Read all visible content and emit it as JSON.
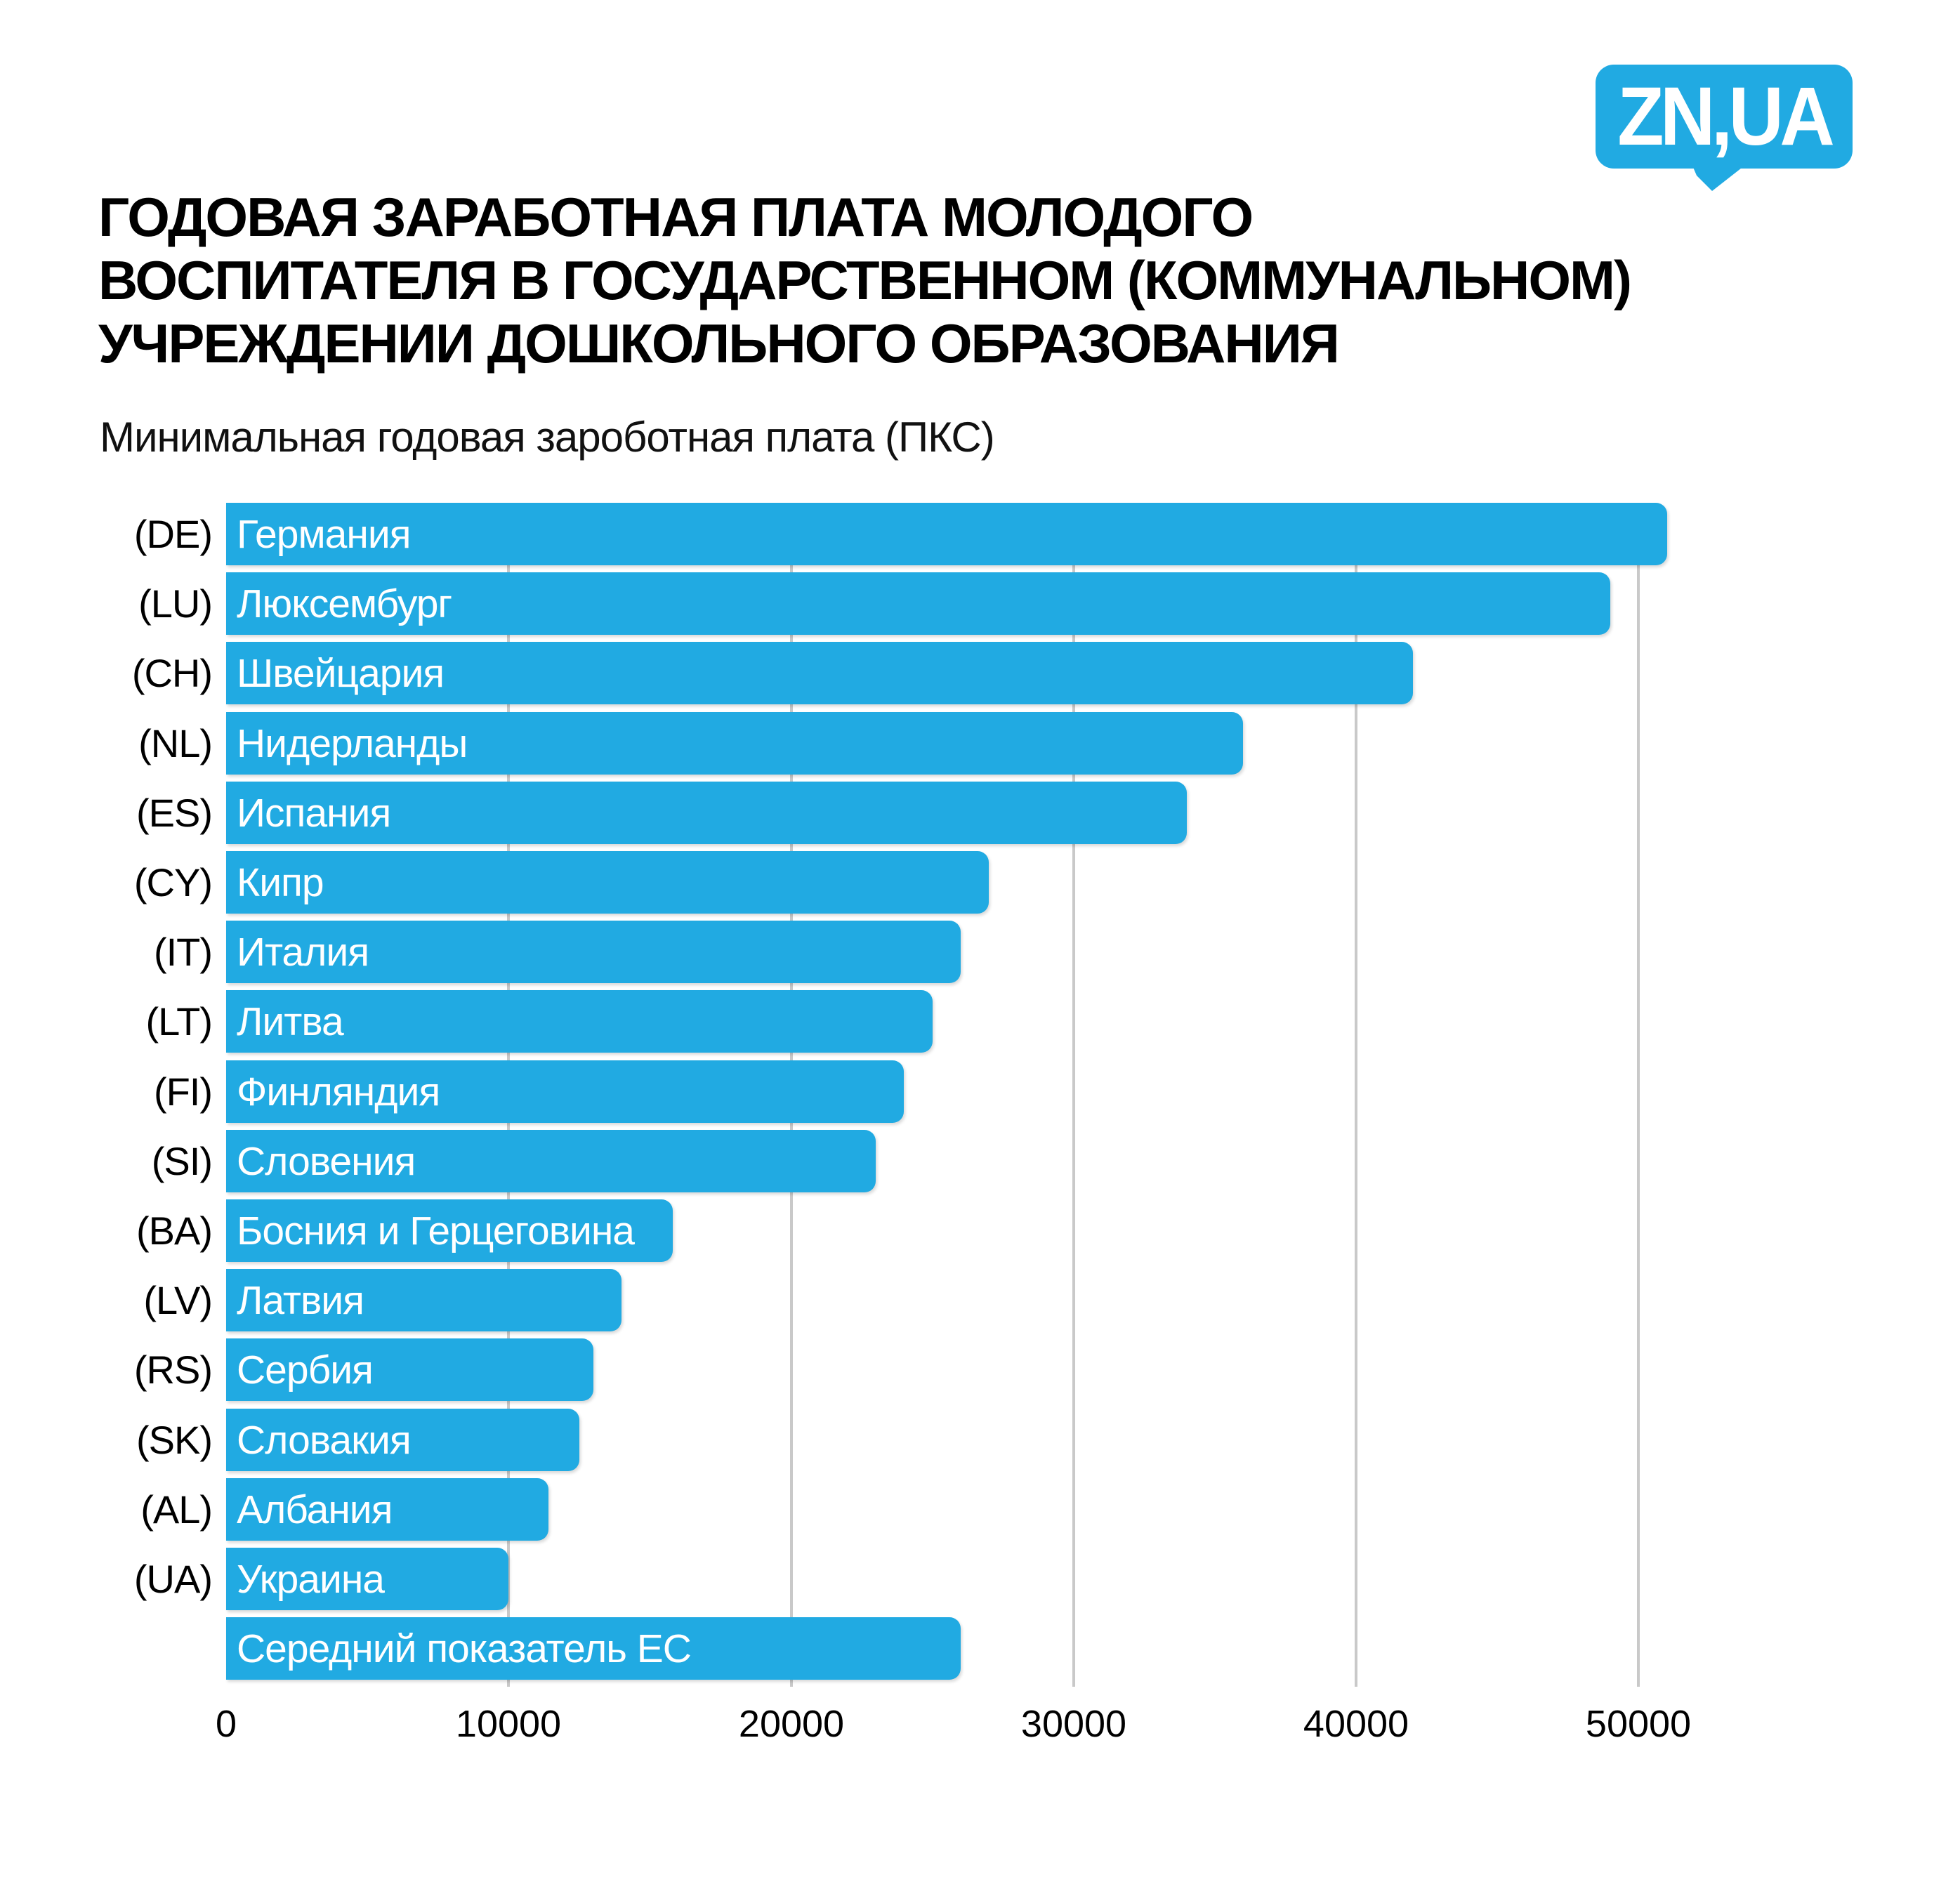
{
  "logo": {
    "text": "ZN,UA",
    "color": "#FFFFFF",
    "background": "#21AAE2"
  },
  "title": {
    "lines": [
      "ГОДОВАЯ ЗАРАБОТНАЯ ПЛАТА МОЛОДОГО",
      "ВОСПИТАТЕЛЯ В ГОСУДАРСТВЕННОМ (КОММУНАЛЬНОМ)",
      "УЧРЕЖДЕНИИ ДОШКОЛЬНОГО ОБРАЗОВАНИЯ"
    ]
  },
  "subtitle": "Минимальная годовая зароботная плата (ПКС)",
  "colors": {
    "accent_blue": "#21AAE2",
    "grid_gray": "#C9C9C9",
    "text_black": "#000000",
    "bar_text_white": "#FFFFFF",
    "background": "#FFFFFF"
  },
  "chart_data": {
    "type": "bar",
    "orientation": "horizontal",
    "title": "Годовая заработная плата молодого воспитателя в государственном (коммунальном) учреждении дошкольного образования",
    "xlabel": "Минимальная годовая зароботная плата (ПКС)",
    "ylabel": "",
    "xlim": [
      0,
      52000
    ],
    "xticks": [
      0,
      10000,
      20000,
      30000,
      40000,
      50000
    ],
    "grid": true,
    "legend": false,
    "bar_color": "#21AAE2",
    "rows": [
      {
        "code": "(DE)",
        "label": "Германия",
        "value": 51000
      },
      {
        "code": "(LU)",
        "label": "Люксембург",
        "value": 49000
      },
      {
        "code": "(CH)",
        "label": "Швейцария",
        "value": 42000
      },
      {
        "code": "(NL)",
        "label": "Нидерланды",
        "value": 36000
      },
      {
        "code": "(ES)",
        "label": "Испания",
        "value": 34000
      },
      {
        "code": "(CY)",
        "label": "Кипр",
        "value": 27000
      },
      {
        "code": "(IT)",
        "label": "Италия",
        "value": 26000
      },
      {
        "code": "(LT)",
        "label": "Литва",
        "value": 25000
      },
      {
        "code": "(FI)",
        "label": "Финляндия",
        "value": 24000
      },
      {
        "code": "(SI)",
        "label": "Словения",
        "value": 23000
      },
      {
        "code": "(BA)",
        "label": "Босния и Герцеговина",
        "value": 15800
      },
      {
        "code": "(LV)",
        "label": "Латвия",
        "value": 14000
      },
      {
        "code": "(RS)",
        "label": "Сербия",
        "value": 13000
      },
      {
        "code": "(SK)",
        "label": "Словакия",
        "value": 12500
      },
      {
        "code": "(AL)",
        "label": "Албания",
        "value": 11400
      },
      {
        "code": "(UA)",
        "label": "Украина",
        "value": 10000
      },
      {
        "code": "",
        "label": "Середний показатель ЕС",
        "value": 26000
      }
    ]
  }
}
